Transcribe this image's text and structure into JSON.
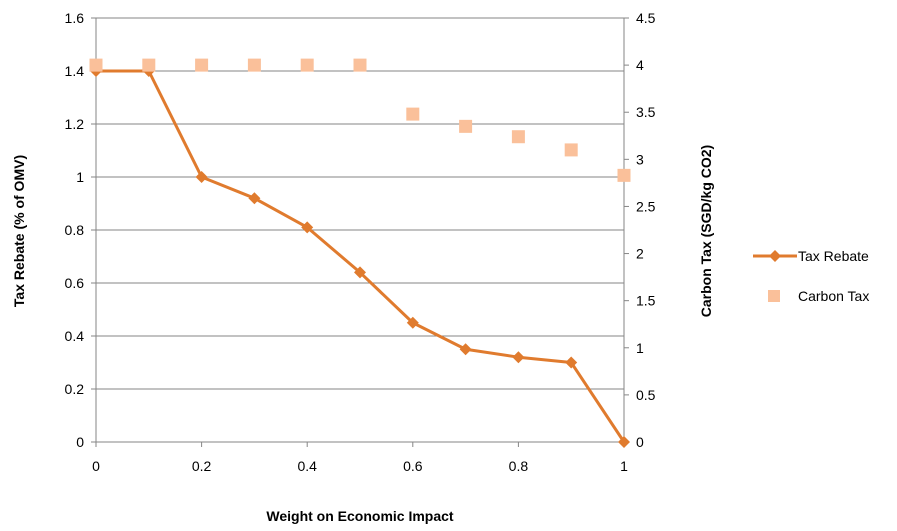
{
  "chart_data": {
    "type": "line",
    "xlabel": "Weight on Economic Impact",
    "ylabel_left": "Tax Rebate (% of OMV)",
    "ylabel_right": "Carbon Tax (SGD/kg CO2)",
    "x": [
      0,
      0.1,
      0.2,
      0.3,
      0.4,
      0.5,
      0.6,
      0.7,
      0.8,
      0.9,
      1
    ],
    "xlim": [
      0,
      1
    ],
    "x_ticks": [
      "0",
      "0.2",
      "0.4",
      "0.6",
      "0.8",
      "1"
    ],
    "ylim_left": [
      0,
      1.6
    ],
    "y_ticks_left": [
      "0",
      "0.2",
      "0.4",
      "0.6",
      "0.8",
      "1",
      "1.2",
      "1.4",
      "1.6"
    ],
    "ylim_right": [
      0,
      4.5
    ],
    "y_ticks_right": [
      "0",
      "0.5",
      "1",
      "1.5",
      "2",
      "2.5",
      "3",
      "3.5",
      "4",
      "4.5"
    ],
    "grid": "horizontal",
    "legend_position": "right",
    "series": [
      {
        "name": "Tax Rebate",
        "axis": "left",
        "style": "line-diamond",
        "color": "#E07B2E",
        "values": [
          1.4,
          1.4,
          1.0,
          0.92,
          0.81,
          0.64,
          0.45,
          0.35,
          0.32,
          0.3,
          0
        ]
      },
      {
        "name": "Carbon Tax",
        "axis": "right",
        "style": "square-markers",
        "color": "#FAC09A",
        "values": [
          4.0,
          4.0,
          4.0,
          4.0,
          4.0,
          4.0,
          3.48,
          3.35,
          3.24,
          3.1,
          2.83
        ]
      }
    ]
  }
}
